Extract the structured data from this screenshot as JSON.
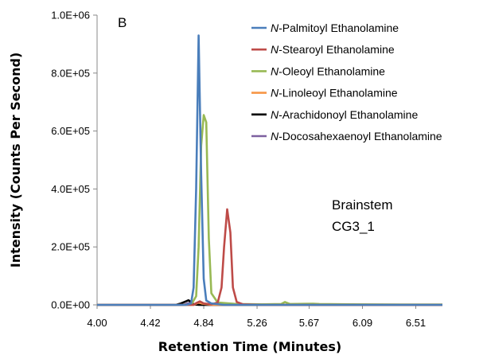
{
  "chart_data": {
    "type": "line",
    "panel_label": "B",
    "title": "",
    "xlabel": "Retention Time (Minutes)",
    "ylabel": "Intensity (Counts Per Second)",
    "xlim": [
      4.0,
      6.72
    ],
    "ylim": [
      0,
      1000000
    ],
    "x_tick_labels": [
      "4.00",
      "4.42",
      "4.84",
      "5.26",
      "5.67",
      "6.09",
      "6.51"
    ],
    "x_tick_values": [
      4.0,
      4.42,
      4.84,
      5.26,
      5.67,
      6.09,
      6.51
    ],
    "y_tick_labels": [
      "0.0E+00",
      "2.0E+05",
      "4.0E+05",
      "6.0E+05",
      "8.0E+05",
      "1.0E+06"
    ],
    "y_tick_values": [
      0,
      200000,
      400000,
      600000,
      800000,
      1000000
    ],
    "grid": false,
    "legend_position": "top-right",
    "annotation": [
      "Brainstem",
      "CG3_1"
    ],
    "series": [
      {
        "name_prefix": "N",
        "name_rest": "-Palmitoyl Ethanolamine",
        "color": "#4a7ebb",
        "points": [
          [
            4.0,
            0
          ],
          [
            4.7,
            0
          ],
          [
            4.74,
            5000
          ],
          [
            4.76,
            60000
          ],
          [
            4.78,
            400000
          ],
          [
            4.8,
            930000
          ],
          [
            4.82,
            450000
          ],
          [
            4.84,
            90000
          ],
          [
            4.86,
            15000
          ],
          [
            4.9,
            5000
          ],
          [
            5.0,
            0
          ],
          [
            6.72,
            0
          ]
        ]
      },
      {
        "name_prefix": "N",
        "name_rest": "-Stearoyl Ethanolamine",
        "color": "#be4b48",
        "points": [
          [
            4.0,
            0
          ],
          [
            4.76,
            0
          ],
          [
            4.78,
            6000
          ],
          [
            4.81,
            12000
          ],
          [
            4.84,
            5000
          ],
          [
            4.9,
            2000
          ],
          [
            4.95,
            8000
          ],
          [
            4.98,
            60000
          ],
          [
            5.0,
            200000
          ],
          [
            5.025,
            330000
          ],
          [
            5.05,
            250000
          ],
          [
            5.07,
            60000
          ],
          [
            5.1,
            10000
          ],
          [
            5.15,
            2000
          ],
          [
            5.3,
            0
          ],
          [
            6.72,
            0
          ]
        ]
      },
      {
        "name_prefix": "N",
        "name_rest": "-Oleoyl Ethanolamine",
        "color": "#98b954",
        "points": [
          [
            4.0,
            0
          ],
          [
            4.74,
            0
          ],
          [
            4.78,
            30000
          ],
          [
            4.8,
            200000
          ],
          [
            4.82,
            550000
          ],
          [
            4.84,
            655000
          ],
          [
            4.86,
            630000
          ],
          [
            4.88,
            230000
          ],
          [
            4.9,
            40000
          ],
          [
            4.95,
            8000
          ],
          [
            5.1,
            3000
          ],
          [
            5.3,
            2000
          ],
          [
            5.45,
            3000
          ],
          [
            5.48,
            10000
          ],
          [
            5.52,
            3000
          ],
          [
            5.7,
            4000
          ],
          [
            5.75,
            3000
          ],
          [
            6.0,
            2000
          ],
          [
            6.4,
            1000
          ],
          [
            6.72,
            1000
          ]
        ]
      },
      {
        "name_prefix": "N",
        "name_rest": "-Linoleoyl Ethanolamine",
        "color": "#f79646",
        "points": [
          [
            4.0,
            0
          ],
          [
            4.76,
            0
          ],
          [
            4.8,
            8000
          ],
          [
            4.83,
            4000
          ],
          [
            4.9,
            0
          ],
          [
            6.72,
            0
          ]
        ]
      },
      {
        "name_prefix": "N",
        "name_rest": "-Arachidonoyl Ethanolamine",
        "color": "#000000",
        "points": [
          [
            4.0,
            0
          ],
          [
            4.62,
            0
          ],
          [
            4.66,
            5000
          ],
          [
            4.7,
            12000
          ],
          [
            4.72,
            16000
          ],
          [
            4.74,
            10000
          ],
          [
            4.76,
            2000
          ],
          [
            4.8,
            0
          ],
          [
            6.72,
            0
          ]
        ]
      },
      {
        "name_prefix": "N",
        "name_rest": "-Docosahexaenoyl Ethanolamine",
        "color": "#7d60a0",
        "points": [
          [
            4.0,
            0
          ],
          [
            4.68,
            0
          ],
          [
            4.72,
            6000
          ],
          [
            4.76,
            3000
          ],
          [
            4.82,
            0
          ],
          [
            6.72,
            0
          ]
        ]
      }
    ]
  }
}
